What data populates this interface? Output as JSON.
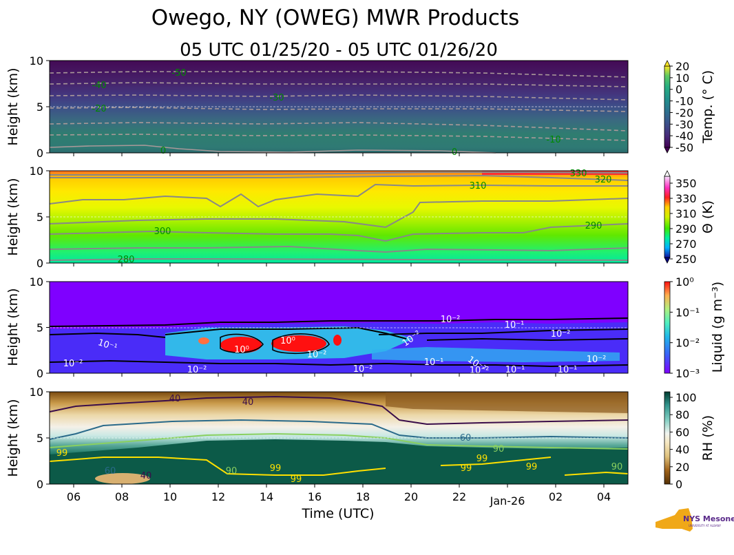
{
  "chart_data": {
    "type": "heatmap",
    "title": "Owego, NY (OWEG) MWR Products",
    "subtitle": "05 UTC 01/25/20 - 05 UTC 01/26/20",
    "xlabel": "Time (UTC)",
    "ylabel": "Height (km)",
    "x_ticks": [
      "06",
      "08",
      "10",
      "12",
      "14",
      "16",
      "18",
      "20",
      "22",
      "Jan-26",
      "02",
      "04"
    ],
    "y_ticks": [
      "0",
      "5",
      "10"
    ],
    "ylim": [
      0,
      10
    ],
    "panels": [
      {
        "id": "temperature",
        "colorbar_label": "Temp. (° C)",
        "colorbar_ticks": [
          "20",
          "10",
          "0",
          "-10",
          "-20",
          "-30",
          "-40",
          "-50"
        ],
        "contour_labels": [
          "-50",
          "-40",
          "-30",
          "-20",
          "-10",
          "0",
          "0"
        ]
      },
      {
        "id": "theta",
        "colorbar_label": "Θ (K)",
        "colorbar_ticks": [
          "350",
          "330",
          "310",
          "290",
          "270",
          "250"
        ],
        "contour_labels": [
          "280",
          "290",
          "300",
          "310",
          "320",
          "330"
        ]
      },
      {
        "id": "liquid",
        "colorbar_label": "Liquid (g m⁻³)",
        "colorbar_ticks": [
          "10⁰",
          "10⁻¹",
          "10⁻²",
          "10⁻³"
        ],
        "contour_labels": [
          "10⁻²",
          "10⁻¹",
          "10⁻²",
          "10⁰",
          "10⁰",
          "10⁻²",
          "10⁻²",
          "10⁻²",
          "10⁻²",
          "10⁻¹",
          "10⁻¹",
          "10⁻²",
          "10⁻²",
          "10⁻¹",
          "10⁻²",
          "10⁻¹",
          "10⁻²"
        ]
      },
      {
        "id": "rh",
        "colorbar_label": "RH (%)",
        "colorbar_ticks": [
          "100",
          "80",
          "60",
          "40",
          "20",
          "0"
        ],
        "contour_labels": [
          "40",
          "40",
          "60",
          "99",
          "99",
          "90",
          "99",
          "99",
          "99",
          "60",
          "40",
          "90",
          "99",
          "90"
        ]
      }
    ]
  },
  "logo": {
    "text": "NYS Mesonet",
    "subtext": "UNIVERSITY AT ALBANY"
  },
  "colors": {
    "contour_gray": "#888888",
    "contour_green": "#008800"
  }
}
